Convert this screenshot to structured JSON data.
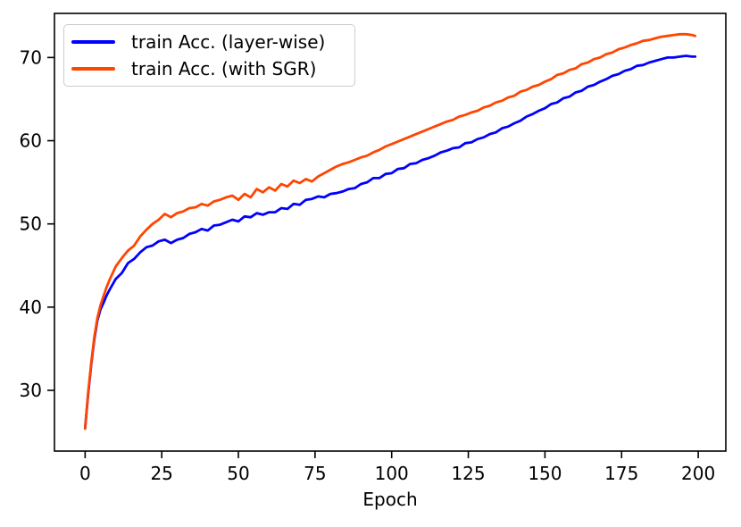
{
  "chart_data": {
    "type": "line",
    "title": "",
    "xlabel": "Epoch",
    "ylabel": "",
    "xlim": [
      -10,
      209
    ],
    "ylim": [
      22.7,
      75.3
    ],
    "x_ticks": [
      0,
      25,
      50,
      75,
      100,
      125,
      150,
      175,
      200
    ],
    "y_ticks": [
      30,
      40,
      50,
      60,
      70
    ],
    "grid": false,
    "legend_position": "upper-left",
    "axis_color": "#000000",
    "series": [
      {
        "name": "train Acc. (layer-wise)",
        "color": "#0000ff",
        "points": [
          [
            0,
            25.4
          ],
          [
            1,
            29.6
          ],
          [
            2,
            33.1
          ],
          [
            3,
            36.1
          ],
          [
            4,
            38.4
          ],
          [
            5,
            39.7
          ],
          [
            6,
            40.5
          ],
          [
            7,
            41.4
          ],
          [
            8,
            42.1
          ],
          [
            10,
            43.4
          ],
          [
            12,
            44.1
          ],
          [
            14,
            45.3
          ],
          [
            16,
            45.8
          ],
          [
            18,
            46.6
          ],
          [
            20,
            47.2
          ],
          [
            22,
            47.4
          ],
          [
            24,
            47.9
          ],
          [
            26,
            48.1
          ],
          [
            28,
            47.7
          ],
          [
            30,
            48.1
          ],
          [
            32,
            48.3
          ],
          [
            34,
            48.8
          ],
          [
            36,
            49.0
          ],
          [
            38,
            49.4
          ],
          [
            40,
            49.2
          ],
          [
            42,
            49.8
          ],
          [
            44,
            49.9
          ],
          [
            46,
            50.2
          ],
          [
            48,
            50.5
          ],
          [
            50,
            50.3
          ],
          [
            52,
            50.9
          ],
          [
            54,
            50.8
          ],
          [
            56,
            51.3
          ],
          [
            58,
            51.1
          ],
          [
            60,
            51.4
          ],
          [
            62,
            51.4
          ],
          [
            64,
            51.9
          ],
          [
            66,
            51.8
          ],
          [
            68,
            52.4
          ],
          [
            70,
            52.3
          ],
          [
            72,
            52.9
          ],
          [
            74,
            53.0
          ],
          [
            76,
            53.3
          ],
          [
            78,
            53.2
          ],
          [
            80,
            53.6
          ],
          [
            82,
            53.7
          ],
          [
            84,
            53.9
          ],
          [
            86,
            54.2
          ],
          [
            88,
            54.3
          ],
          [
            90,
            54.8
          ],
          [
            92,
            55.0
          ],
          [
            94,
            55.5
          ],
          [
            96,
            55.5
          ],
          [
            98,
            56.0
          ],
          [
            100,
            56.1
          ],
          [
            102,
            56.6
          ],
          [
            104,
            56.7
          ],
          [
            106,
            57.2
          ],
          [
            108,
            57.3
          ],
          [
            110,
            57.7
          ],
          [
            112,
            57.9
          ],
          [
            114,
            58.2
          ],
          [
            116,
            58.6
          ],
          [
            118,
            58.8
          ],
          [
            120,
            59.1
          ],
          [
            122,
            59.2
          ],
          [
            124,
            59.7
          ],
          [
            126,
            59.8
          ],
          [
            128,
            60.2
          ],
          [
            130,
            60.4
          ],
          [
            132,
            60.8
          ],
          [
            134,
            61.0
          ],
          [
            136,
            61.5
          ],
          [
            138,
            61.7
          ],
          [
            140,
            62.1
          ],
          [
            142,
            62.4
          ],
          [
            144,
            62.9
          ],
          [
            146,
            63.2
          ],
          [
            148,
            63.6
          ],
          [
            150,
            63.9
          ],
          [
            152,
            64.4
          ],
          [
            154,
            64.6
          ],
          [
            156,
            65.1
          ],
          [
            158,
            65.3
          ],
          [
            160,
            65.8
          ],
          [
            162,
            66.0
          ],
          [
            164,
            66.5
          ],
          [
            166,
            66.7
          ],
          [
            168,
            67.1
          ],
          [
            170,
            67.4
          ],
          [
            172,
            67.8
          ],
          [
            174,
            68.0
          ],
          [
            176,
            68.4
          ],
          [
            178,
            68.6
          ],
          [
            180,
            69.0
          ],
          [
            182,
            69.1
          ],
          [
            184,
            69.4
          ],
          [
            186,
            69.6
          ],
          [
            188,
            69.8
          ],
          [
            190,
            70.0
          ],
          [
            192,
            70.0
          ],
          [
            194,
            70.1
          ],
          [
            196,
            70.2
          ],
          [
            198,
            70.1
          ],
          [
            199,
            70.1
          ]
        ]
      },
      {
        "name": "train Acc. (with SGR)",
        "color": "#ff4500",
        "points": [
          [
            0,
            25.4
          ],
          [
            1,
            29.8
          ],
          [
            2,
            33.3
          ],
          [
            3,
            36.4
          ],
          [
            4,
            38.7
          ],
          [
            5,
            40.2
          ],
          [
            6,
            41.3
          ],
          [
            7,
            42.4
          ],
          [
            8,
            43.3
          ],
          [
            10,
            44.9
          ],
          [
            12,
            45.9
          ],
          [
            14,
            46.8
          ],
          [
            16,
            47.4
          ],
          [
            18,
            48.5
          ],
          [
            20,
            49.3
          ],
          [
            22,
            50.0
          ],
          [
            24,
            50.5
          ],
          [
            26,
            51.2
          ],
          [
            28,
            50.8
          ],
          [
            30,
            51.3
          ],
          [
            32,
            51.5
          ],
          [
            34,
            51.9
          ],
          [
            36,
            52.0
          ],
          [
            38,
            52.4
          ],
          [
            40,
            52.2
          ],
          [
            42,
            52.7
          ],
          [
            44,
            52.9
          ],
          [
            46,
            53.2
          ],
          [
            48,
            53.4
          ],
          [
            50,
            52.9
          ],
          [
            52,
            53.6
          ],
          [
            54,
            53.2
          ],
          [
            56,
            54.2
          ],
          [
            58,
            53.8
          ],
          [
            60,
            54.4
          ],
          [
            62,
            54.0
          ],
          [
            64,
            54.8
          ],
          [
            66,
            54.5
          ],
          [
            68,
            55.2
          ],
          [
            70,
            54.9
          ],
          [
            72,
            55.4
          ],
          [
            74,
            55.1
          ],
          [
            76,
            55.7
          ],
          [
            78,
            56.1
          ],
          [
            80,
            56.5
          ],
          [
            82,
            56.9
          ],
          [
            84,
            57.2
          ],
          [
            86,
            57.4
          ],
          [
            88,
            57.7
          ],
          [
            90,
            58.0
          ],
          [
            92,
            58.2
          ],
          [
            94,
            58.6
          ],
          [
            96,
            58.9
          ],
          [
            98,
            59.3
          ],
          [
            100,
            59.6
          ],
          [
            102,
            59.9
          ],
          [
            104,
            60.2
          ],
          [
            106,
            60.5
          ],
          [
            108,
            60.8
          ],
          [
            110,
            61.1
          ],
          [
            112,
            61.4
          ],
          [
            114,
            61.7
          ],
          [
            116,
            62.0
          ],
          [
            118,
            62.3
          ],
          [
            120,
            62.5
          ],
          [
            122,
            62.9
          ],
          [
            124,
            63.1
          ],
          [
            126,
            63.4
          ],
          [
            128,
            63.6
          ],
          [
            130,
            64.0
          ],
          [
            132,
            64.2
          ],
          [
            134,
            64.6
          ],
          [
            136,
            64.8
          ],
          [
            138,
            65.2
          ],
          [
            140,
            65.4
          ],
          [
            142,
            65.9
          ],
          [
            144,
            66.1
          ],
          [
            146,
            66.5
          ],
          [
            148,
            66.7
          ],
          [
            150,
            67.1
          ],
          [
            152,
            67.4
          ],
          [
            154,
            67.9
          ],
          [
            156,
            68.1
          ],
          [
            158,
            68.5
          ],
          [
            160,
            68.7
          ],
          [
            162,
            69.2
          ],
          [
            164,
            69.4
          ],
          [
            166,
            69.8
          ],
          [
            168,
            70.0
          ],
          [
            170,
            70.4
          ],
          [
            172,
            70.6
          ],
          [
            174,
            71.0
          ],
          [
            176,
            71.2
          ],
          [
            178,
            71.5
          ],
          [
            180,
            71.7
          ],
          [
            182,
            72.0
          ],
          [
            184,
            72.1
          ],
          [
            186,
            72.3
          ],
          [
            188,
            72.5
          ],
          [
            190,
            72.6
          ],
          [
            192,
            72.7
          ],
          [
            194,
            72.8
          ],
          [
            196,
            72.8
          ],
          [
            198,
            72.7
          ],
          [
            199,
            72.6
          ]
        ]
      }
    ]
  }
}
